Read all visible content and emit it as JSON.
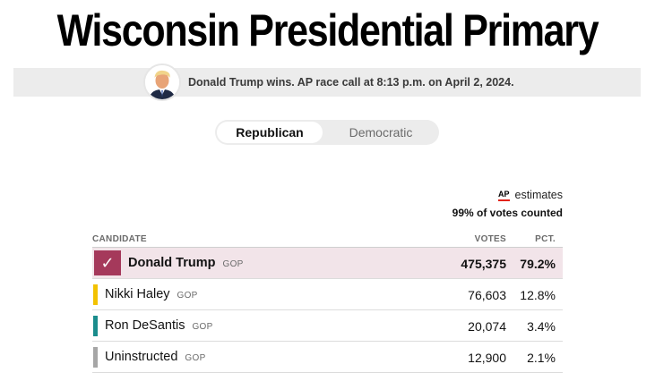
{
  "page": {
    "title": "Wisconsin Presidential Primary"
  },
  "race_call": {
    "text": "Donald Trump wins. AP race call at 8:13 p.m. on April 2, 2024."
  },
  "party_toggle": {
    "options": [
      "Republican",
      "Democratic"
    ],
    "selected": "Republican"
  },
  "estimates": {
    "source": "AP",
    "label": "estimates",
    "votes_counted": "99% of votes counted"
  },
  "table": {
    "headers": {
      "candidate": "CANDIDATE",
      "votes": "VOTES",
      "pct": "PCT."
    },
    "rows": [
      {
        "name": "Donald Trump",
        "party": "GOP",
        "votes": "475,375",
        "pct": "79.2%",
        "winner": true,
        "color": "#a5395b",
        "check": "✓"
      },
      {
        "name": "Nikki Haley",
        "party": "GOP",
        "votes": "76,603",
        "pct": "12.8%",
        "winner": false,
        "color": "#f2c200"
      },
      {
        "name": "Ron DeSantis",
        "party": "GOP",
        "votes": "20,074",
        "pct": "3.4%",
        "winner": false,
        "color": "#1a8c8c"
      },
      {
        "name": "Uninstructed",
        "party": "GOP",
        "votes": "12,900",
        "pct": "2.1%",
        "winner": false,
        "color": "#a6a6a6"
      }
    ]
  }
}
